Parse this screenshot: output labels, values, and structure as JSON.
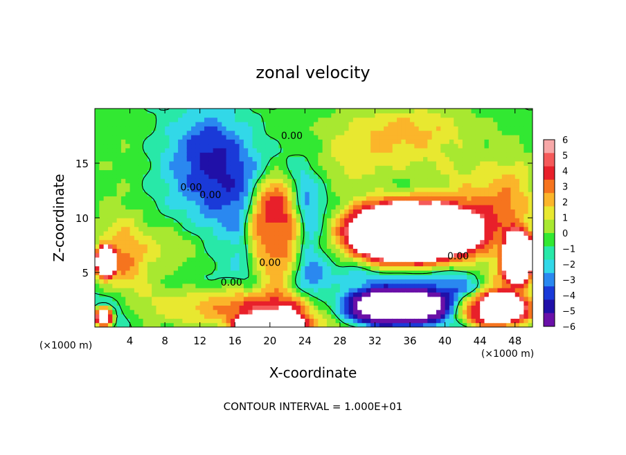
{
  "chart_data": {
    "type": "heatmap",
    "title": "zonal velocity",
    "xlabel": "X-coordinate",
    "ylabel": "Z-coordinate",
    "x_unit_note": "(×1000 m)",
    "y_unit_note": "(×1000 m)",
    "xlim": [
      0,
      50
    ],
    "ylim": [
      0,
      20
    ],
    "x_ticks": [
      4,
      8,
      12,
      16,
      20,
      24,
      28,
      32,
      36,
      40,
      44,
      48
    ],
    "y_ticks": [
      5,
      10,
      15
    ],
    "colorbar": {
      "ticks": [
        6,
        5,
        4,
        3,
        2,
        1,
        0,
        -1,
        -2,
        -3,
        -4,
        -5,
        -6
      ],
      "colors": [
        "#f7a8a8",
        "#f55a5a",
        "#e8202a",
        "#f6741e",
        "#fbb52a",
        "#e8e830",
        "#a8e830",
        "#32e832",
        "#28e8a8",
        "#32d8e8",
        "#2a88f0",
        "#1a3ad8",
        "#2010a8",
        "#6a10a8"
      ]
    },
    "contour_labels": [
      "0.00",
      "0.00",
      "0.00",
      "0.00",
      "0.00",
      "0.00"
    ],
    "footnote": "CONTOUR INTERVAL = 1.000E+01",
    "blobs": [
      {
        "x": 8,
        "z": 10,
        "rx": 11,
        "rz": 6,
        "v": 0.4
      },
      {
        "x": 3,
        "z": 16,
        "rx": 5,
        "rz": 5,
        "v": 0.8
      },
      {
        "x": 20,
        "z": 18,
        "rx": 7,
        "rz": 3,
        "v": 0.6
      },
      {
        "x": 15,
        "z": 13,
        "rx": 5,
        "rz": 5,
        "v": -3.8
      },
      {
        "x": 13,
        "z": 17,
        "rx": 4,
        "rz": 3,
        "v": -2.2
      },
      {
        "x": 9,
        "z": 14,
        "rx": 4,
        "rz": 4,
        "v": -1.2
      },
      {
        "x": 24,
        "z": 11,
        "rx": 2.5,
        "rz": 5,
        "v": -3
      },
      {
        "x": 20,
        "z": 7,
        "rx": 3,
        "rz": 3.5,
        "v": -3.5
      },
      {
        "x": 25,
        "z": 3,
        "rx": 2,
        "rz": 3,
        "v": -3
      },
      {
        "x": 33,
        "z": 15,
        "rx": 9,
        "rz": 3,
        "v": 3.2
      },
      {
        "x": 36,
        "z": 18.5,
        "rx": 8,
        "rz": 2,
        "v": 2.6
      },
      {
        "x": 44,
        "z": 10,
        "rx": 5,
        "rz": 4,
        "v": 3.8
      },
      {
        "x": 48,
        "z": 12,
        "rx": 3,
        "rz": 5,
        "v": 2.2
      },
      {
        "x": 35,
        "z": 13.5,
        "rx": 4.5,
        "rz": 2.2,
        "v": -1.8
      },
      {
        "x": 34,
        "z": 8.5,
        "rx": 7,
        "rz": 3,
        "v": 4.5
      },
      {
        "x": 36,
        "z": 4.5,
        "rx": 7,
        "rz": 2,
        "v": -3.5
      },
      {
        "x": 30,
        "z": 6,
        "rx": 3,
        "rz": 4,
        "v": -1
      },
      {
        "x": 16,
        "z": 2,
        "rx": 13,
        "rz": 2,
        "v": 3.6
      },
      {
        "x": 22,
        "z": 1,
        "rx": 6,
        "rz": 2,
        "v": 4.6
      },
      {
        "x": 3,
        "z": 6,
        "rx": 3,
        "rz": 4,
        "v": 4
      },
      {
        "x": 2,
        "z": 2,
        "rx": 3,
        "rz": 2,
        "v": -3.2
      },
      {
        "x": 9,
        "z": 7,
        "rx": 4,
        "rz": 2.5,
        "v": 1.8
      },
      {
        "x": 12,
        "z": 4,
        "rx": 5,
        "rz": 2,
        "v": -1
      },
      {
        "x": 42,
        "z": 2,
        "rx": 3,
        "rz": 2.5,
        "v": -2.8
      },
      {
        "x": 47,
        "z": 4,
        "rx": 3,
        "rz": 2,
        "v": 4
      }
    ],
    "saturated_regions": [
      {
        "x": 20.5,
        "z": 8.8,
        "rx": 3.2,
        "rz": 5,
        "v": 8
      },
      {
        "x": 36,
        "z": 8.5,
        "rx": 8,
        "rz": 3.4,
        "v": 8
      },
      {
        "x": 48.5,
        "z": 6.5,
        "rx": 2,
        "rz": 2.5,
        "v": 8
      },
      {
        "x": 34,
        "z": 1.8,
        "rx": 7,
        "rz": 1.8,
        "v": -8
      },
      {
        "x": 45.5,
        "z": 1.6,
        "rx": 5,
        "rz": 1.7,
        "v": 8
      },
      {
        "x": 1.2,
        "z": 6,
        "rx": 1.2,
        "rz": 1.5,
        "v": 8
      },
      {
        "x": 20,
        "z": 0.4,
        "rx": 4,
        "rz": 0.8,
        "v": 8
      },
      {
        "x": 1,
        "z": 1,
        "rx": 1.2,
        "rz": 1,
        "v": 8
      }
    ]
  }
}
